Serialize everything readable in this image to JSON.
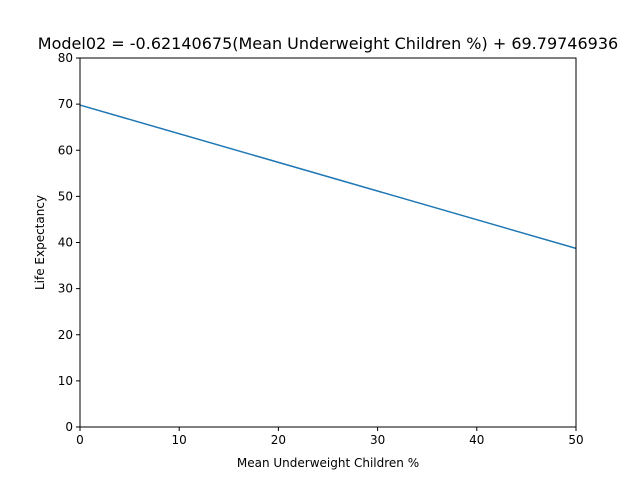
{
  "chart_data": {
    "type": "line",
    "title": "Model02 = -0.62140675(Mean Underweight Children %) + 69.79746936",
    "xlabel": "Mean Underweight Children %",
    "ylabel": "Life Expectancy",
    "xlim": [
      0,
      50
    ],
    "ylim": [
      0,
      80
    ],
    "x_ticks": [
      0,
      10,
      20,
      30,
      40,
      50
    ],
    "y_ticks": [
      0,
      10,
      20,
      30,
      40,
      50,
      60,
      70,
      80
    ],
    "grid": false,
    "series": [
      {
        "color": "#1f77b4",
        "x": [
          0,
          50
        ],
        "y": [
          69.79746936,
          38.7271318
        ]
      }
    ]
  }
}
